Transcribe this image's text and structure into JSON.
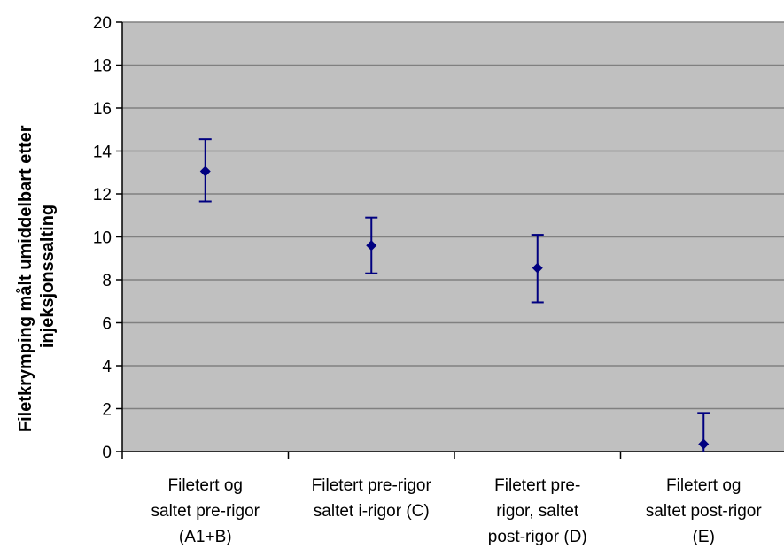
{
  "chart_data": {
    "type": "scatter",
    "title": "",
    "xlabel": "",
    "ylabel_lines": [
      "Filetkrymping målt umiddelbart etter",
      "injeksjonssalting"
    ],
    "ylim": [
      0,
      20
    ],
    "yticks": [
      0,
      2,
      4,
      6,
      8,
      10,
      12,
      14,
      16,
      18,
      20
    ],
    "grid": true,
    "legend": "none",
    "categories": [
      [
        "Filetert og",
        "saltet pre-rigor",
        "(A1+B)"
      ],
      [
        "Filetert pre-rigor",
        "saltet i-rigor (C)"
      ],
      [
        "Filetert pre-",
        "rigor, saltet",
        "post-rigor (D)"
      ],
      [
        "Filetert og",
        "saltet post-rigor",
        "(E)"
      ]
    ],
    "values": [
      13.05,
      9.6,
      8.55,
      0.35
    ],
    "error_low": [
      11.65,
      8.3,
      6.95,
      0
    ],
    "error_high": [
      14.55,
      10.9,
      10.1,
      1.8
    ],
    "colors": {
      "plot_background": "#c0c0c0",
      "gridline": "#808080",
      "marker": "#000080",
      "axis": "#000000"
    }
  }
}
